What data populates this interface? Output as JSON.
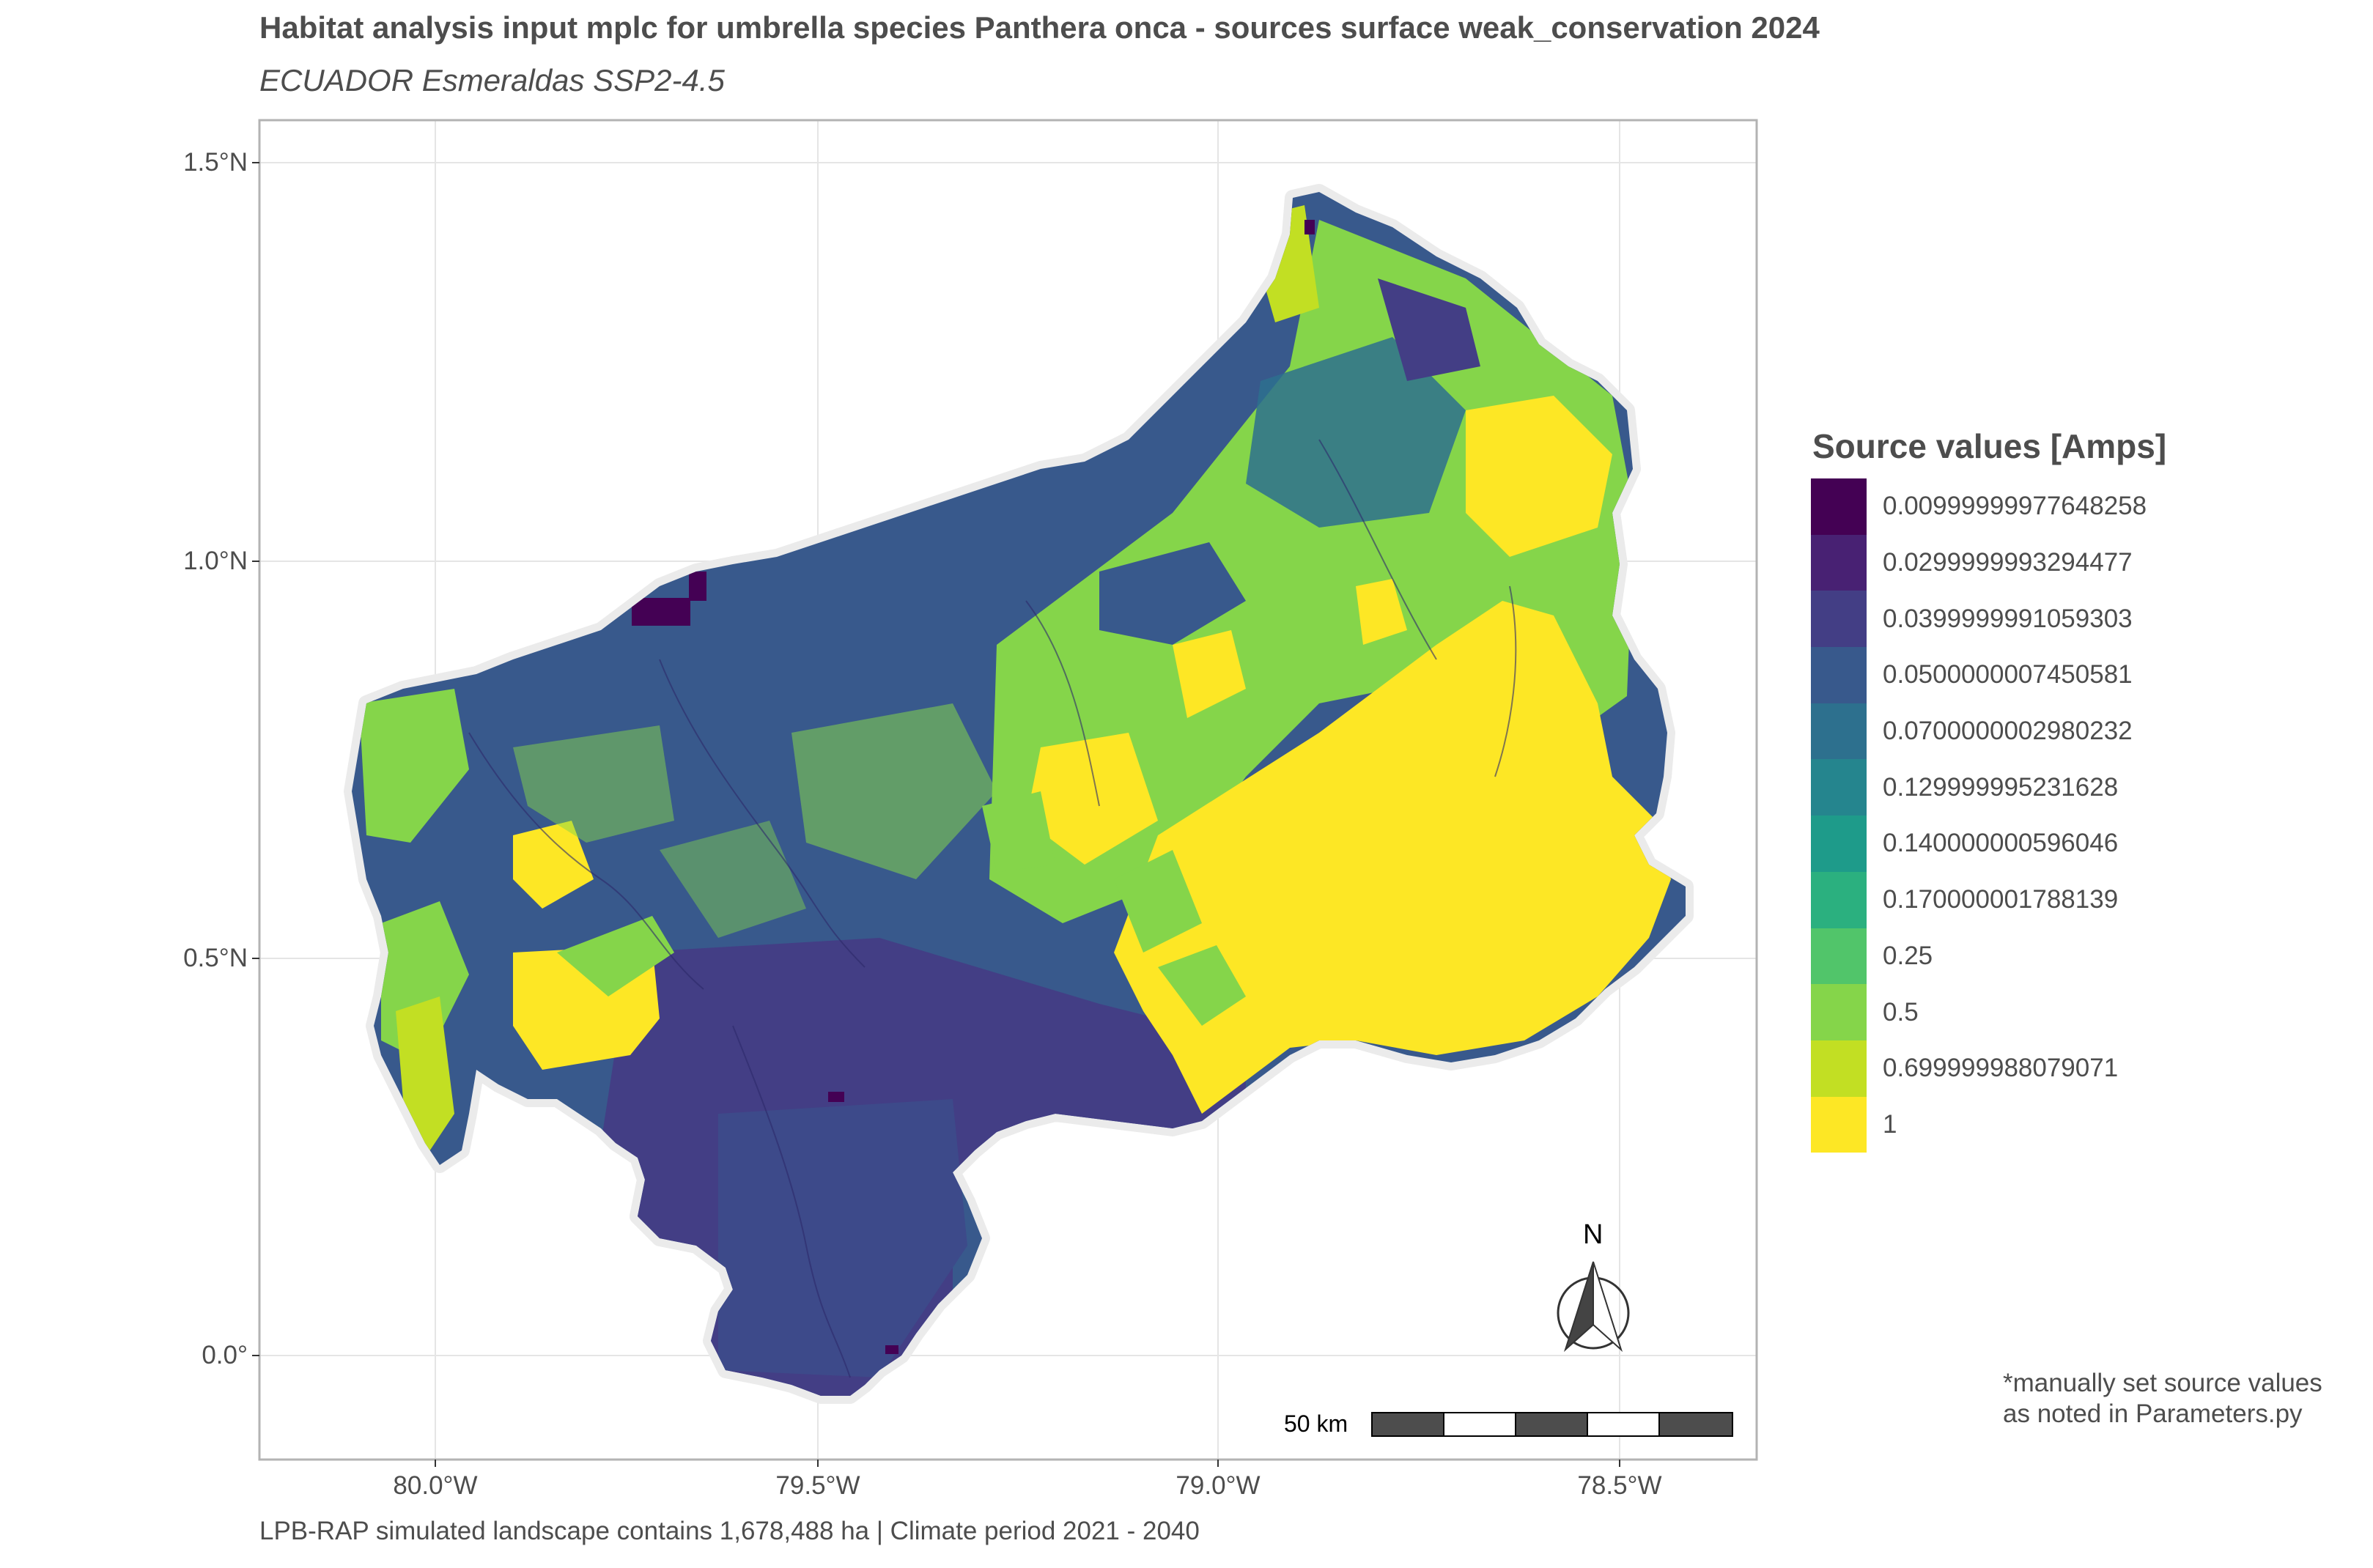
{
  "title": "Habitat analysis input mplc for umbrella species Panthera onca - sources surface weak_conservation 2024",
  "subtitle": "ECUADOR Esmeraldas SSP2-4.5",
  "caption": "LPB-RAP simulated landscape contains 1,678,488 ha | Climate period 2021 - 2040",
  "note_lines": [
    "*manually set source values",
    "as noted in Parameters.py"
  ],
  "axes": {
    "y_ticks": [
      "1.5°N",
      "1.0°N",
      "0.5°N",
      "0.0°"
    ],
    "x_ticks": [
      "80.0°W",
      "79.5°W",
      "79.0°W",
      "78.5°W"
    ]
  },
  "legend": {
    "title": "Source values [Amps]",
    "items": [
      {
        "label": "0.00999999977648258",
        "color": "#440154"
      },
      {
        "label": "0.0299999993294477",
        "color": "#482173"
      },
      {
        "label": "0.0399999991059303",
        "color": "#433E85"
      },
      {
        "label": "0.0500000007450581",
        "color": "#38598C"
      },
      {
        "label": "0.0700000002980232",
        "color": "#2D708E"
      },
      {
        "label": "0.129999995231628",
        "color": "#25858E"
      },
      {
        "label": "0.140000000596046",
        "color": "#1E9B8A"
      },
      {
        "label": "0.170000001788139",
        "color": "#2BB07F"
      },
      {
        "label": "0.25",
        "color": "#51C56A"
      },
      {
        "label": "0.5",
        "color": "#85D54A"
      },
      {
        "label": "0.699999988079071",
        "color": "#C2DF23"
      },
      {
        "label": "1",
        "color": "#FDE725"
      }
    ]
  },
  "scale_bar": {
    "label": "50 km"
  },
  "north_arrow": {
    "label": "N"
  }
}
